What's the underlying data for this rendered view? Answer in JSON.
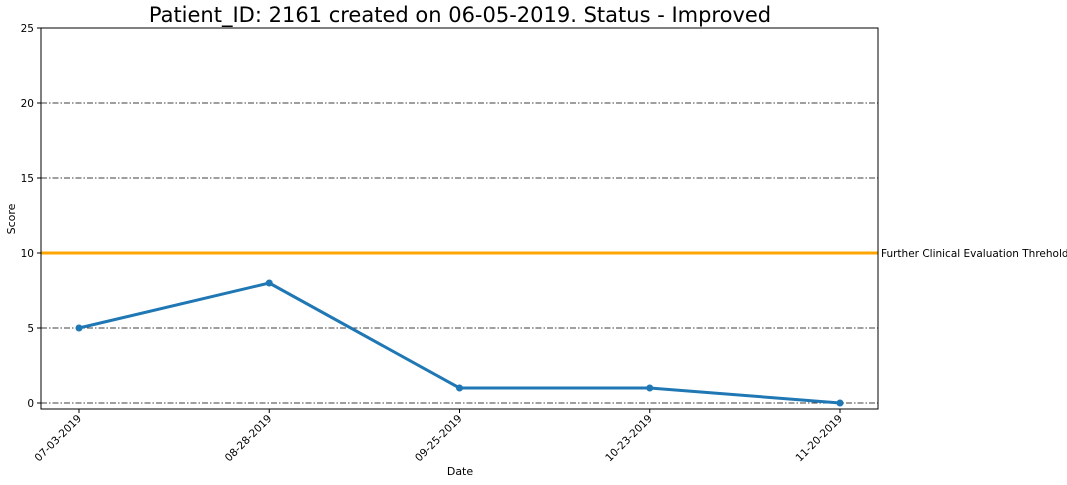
{
  "chart_data": {
    "type": "line",
    "title": "Patient_ID: 2161 created on 06-05-2019. Status - Improved",
    "xlabel": "Date",
    "ylabel": "Score",
    "categories": [
      "07-03-2019",
      "08-28-2019",
      "09-25-2019",
      "10-23-2019",
      "11-20-2019"
    ],
    "series": [
      {
        "values": [
          5,
          8,
          1,
          1,
          0
        ],
        "color": "#1f77b4"
      }
    ],
    "ylim": [
      0,
      25
    ],
    "yticks": [
      0,
      5,
      10,
      15,
      20,
      25
    ],
    "threshold": {
      "value": 10,
      "label": "Further Clinical Evaluation Threhold",
      "color": "#ffa500"
    },
    "grid": "y-dashdot",
    "legend": "none"
  }
}
